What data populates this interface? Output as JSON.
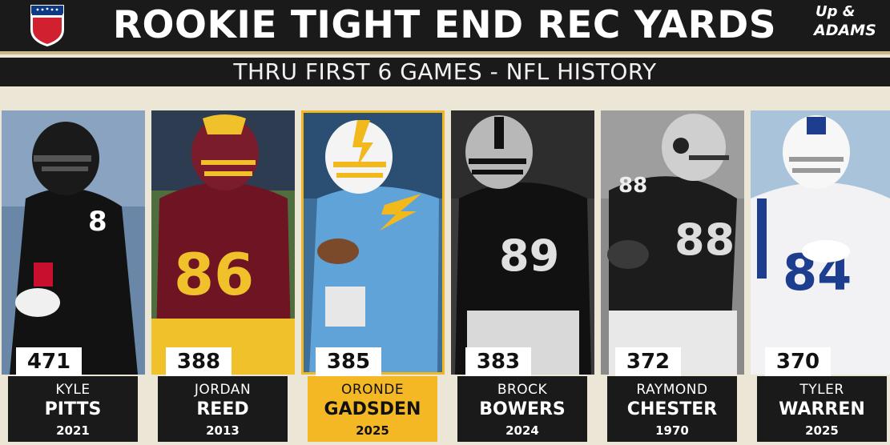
{
  "header": {
    "title": "ROOKIE TIGHT END REC YARDS",
    "subtitle": "THRU FIRST 6 GAMES - NFL HISTORY",
    "league_logo": "NFL",
    "show_logo_line1": "Up &",
    "show_logo_line2": "ADAMS"
  },
  "colors": {
    "highlight": "#f3b824",
    "dark": "#1a1a1a",
    "background": "#ece6d6"
  },
  "players": [
    {
      "first": "KYLE",
      "last": "PITTS",
      "year": "2021",
      "yards": "471",
      "jersey": "8",
      "team_icon": "falcons-helmet-icon"
    },
    {
      "first": "JORDAN",
      "last": "REED",
      "year": "2013",
      "yards": "388",
      "jersey": "86",
      "team_icon": "washington-helmet-icon"
    },
    {
      "first": "ORONDE",
      "last": "GADSDEN",
      "year": "2025",
      "yards": "385",
      "jersey": "",
      "team_icon": "chargers-helmet-icon",
      "highlighted": true
    },
    {
      "first": "BROCK",
      "last": "BOWERS",
      "year": "2024",
      "yards": "383",
      "jersey": "89",
      "team_icon": "raiders-helmet-icon"
    },
    {
      "first": "RAYMOND",
      "last": "CHESTER",
      "year": "1970",
      "yards": "372",
      "jersey": "88",
      "team_icon": "raiders-helmet-icon"
    },
    {
      "first": "TYLER",
      "last": "WARREN",
      "year": "2025",
      "yards": "370",
      "jersey": "84",
      "team_icon": "colts-helmet-icon"
    }
  ]
}
